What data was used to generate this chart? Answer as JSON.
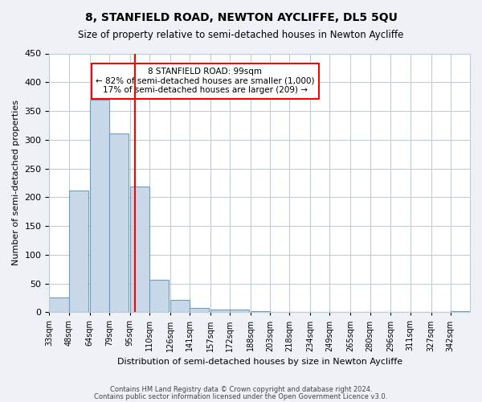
{
  "title": "8, STANFIELD ROAD, NEWTON AYCLIFFE, DL5 5QU",
  "subtitle": "Size of property relative to semi-detached houses in Newton Aycliffe",
  "xlabel": "Distribution of semi-detached houses by size in Newton Aycliffe",
  "ylabel": "Number of semi-detached properties",
  "bin_labels": [
    "33sqm",
    "48sqm",
    "64sqm",
    "79sqm",
    "95sqm",
    "110sqm",
    "126sqm",
    "141sqm",
    "157sqm",
    "172sqm",
    "188sqm",
    "203sqm",
    "218sqm",
    "234sqm",
    "249sqm",
    "265sqm",
    "280sqm",
    "296sqm",
    "311sqm",
    "327sqm",
    "342sqm"
  ],
  "bin_edges": [
    33,
    48,
    64,
    79,
    95,
    110,
    126,
    141,
    157,
    172,
    188,
    203,
    218,
    234,
    249,
    265,
    280,
    296,
    311,
    327,
    342
  ],
  "bar_heights": [
    26,
    212,
    369,
    311,
    218,
    56,
    22,
    7,
    5,
    4,
    2,
    1,
    1,
    0,
    0,
    0,
    0,
    0,
    0,
    0,
    2
  ],
  "bar_color": "#c8d8e8",
  "bar_edge_color": "#6a9fc0",
  "vline_x": 99,
  "vline_color": "red",
  "ylim": [
    0,
    450
  ],
  "annotation_title": "8 STANFIELD ROAD: 99sqm",
  "annotation_line1": "← 82% of semi-detached houses are smaller (1,000)",
  "annotation_line2": "17% of semi-detached houses are larger (209) →",
  "footer1": "Contains HM Land Registry data © Crown copyright and database right 2024.",
  "footer2": "Contains public sector information licensed under the Open Government Licence v3.0.",
  "background_color": "#eef2f6",
  "plot_background": "#ffffff",
  "grid_color": "#c0ccd8"
}
